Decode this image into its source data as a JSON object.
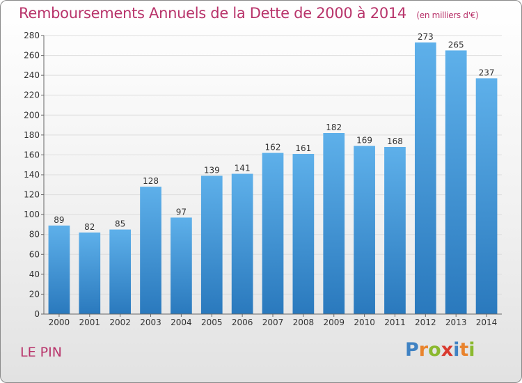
{
  "header": {
    "title": "Remboursements Annuels de la Dette de 2000 à 2014",
    "unit": "(en milliers d'€)"
  },
  "footer": {
    "place": "LE PIN",
    "brand": "Proxiti",
    "brand_letters": [
      "P",
      "r",
      "o",
      "x",
      "i",
      "t",
      "i"
    ]
  },
  "colors": {
    "title": "#b8336a",
    "bar_top": "#5eb0ea",
    "bar_bottom": "#2a79bd",
    "grid": "#dddddd",
    "text": "#333333"
  },
  "chart_data": {
    "type": "bar",
    "title": "Remboursements Annuels de la Dette de 2000 à 2014",
    "subtitle": "(en milliers d'€)",
    "categories": [
      "2000",
      "2001",
      "2002",
      "2003",
      "2004",
      "2005",
      "2006",
      "2007",
      "2008",
      "2009",
      "2010",
      "2011",
      "2012",
      "2013",
      "2014"
    ],
    "values": [
      89,
      82,
      85,
      128,
      97,
      139,
      141,
      162,
      161,
      182,
      169,
      168,
      273,
      265,
      237
    ],
    "ylim": [
      0,
      280
    ],
    "yticks": [
      0,
      20,
      40,
      60,
      80,
      100,
      120,
      140,
      160,
      180,
      200,
      220,
      240,
      260,
      280
    ],
    "xlabel": "",
    "ylabel": "",
    "grid": true,
    "data_labels": true
  }
}
